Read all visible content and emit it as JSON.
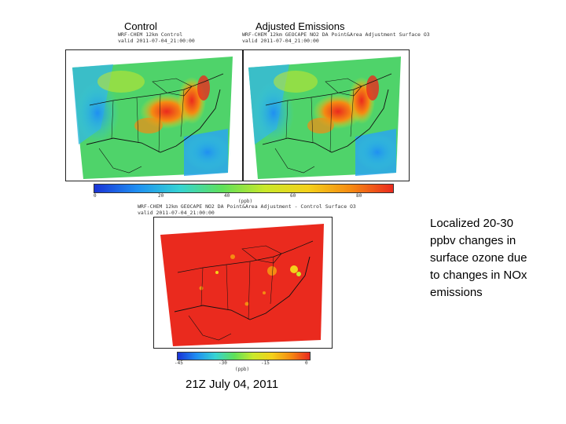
{
  "labels": {
    "control": "Control",
    "adjusted": "Adjusted Emissions"
  },
  "maps": {
    "control": {
      "header_line1": "WRF-CHEM 12km Control",
      "header_line2": "valid 2011-07-04_21:00:00"
    },
    "adjusted": {
      "header_line1": "WRF-CHEM 12km GEOCAPE NO2 DA Point&Area Adjustment Surface O3",
      "header_line2": "valid 2011-07-04_21:00:00"
    },
    "difference": {
      "header_line1": "WRF-CHEM 12km GEOCAPE NO2 DA Point&Area Adjustment - Control Surface O3",
      "header_line2": "valid 2011-07-04_21:00:00"
    }
  },
  "colorbar_top": {
    "unit": "(ppb)",
    "ticks": [
      "0",
      "20",
      "40",
      "60",
      "80"
    ],
    "colors": [
      "#1a33d6",
      "#1f8ff2",
      "#35d3d3",
      "#5fe05a",
      "#c9e82a",
      "#f4d11a",
      "#f58b12",
      "#ea2a1e"
    ]
  },
  "colorbar_bottom": {
    "unit": "(ppb)",
    "ticks": [
      "-45",
      "-30",
      "-15",
      "0"
    ],
    "colors": [
      "#1a33d6",
      "#1f8ff2",
      "#35d3d3",
      "#5fe05a",
      "#c9e82a",
      "#f4d11a",
      "#f58b12",
      "#ea2a1e"
    ]
  },
  "caption": "21Z July 04, 2011",
  "note": {
    "line1": "Localized 20-30",
    "line2": "ppbv changes in",
    "line3": "surface ozone due",
    "line4": "to changes in NOx",
    "line5": "emissions"
  }
}
